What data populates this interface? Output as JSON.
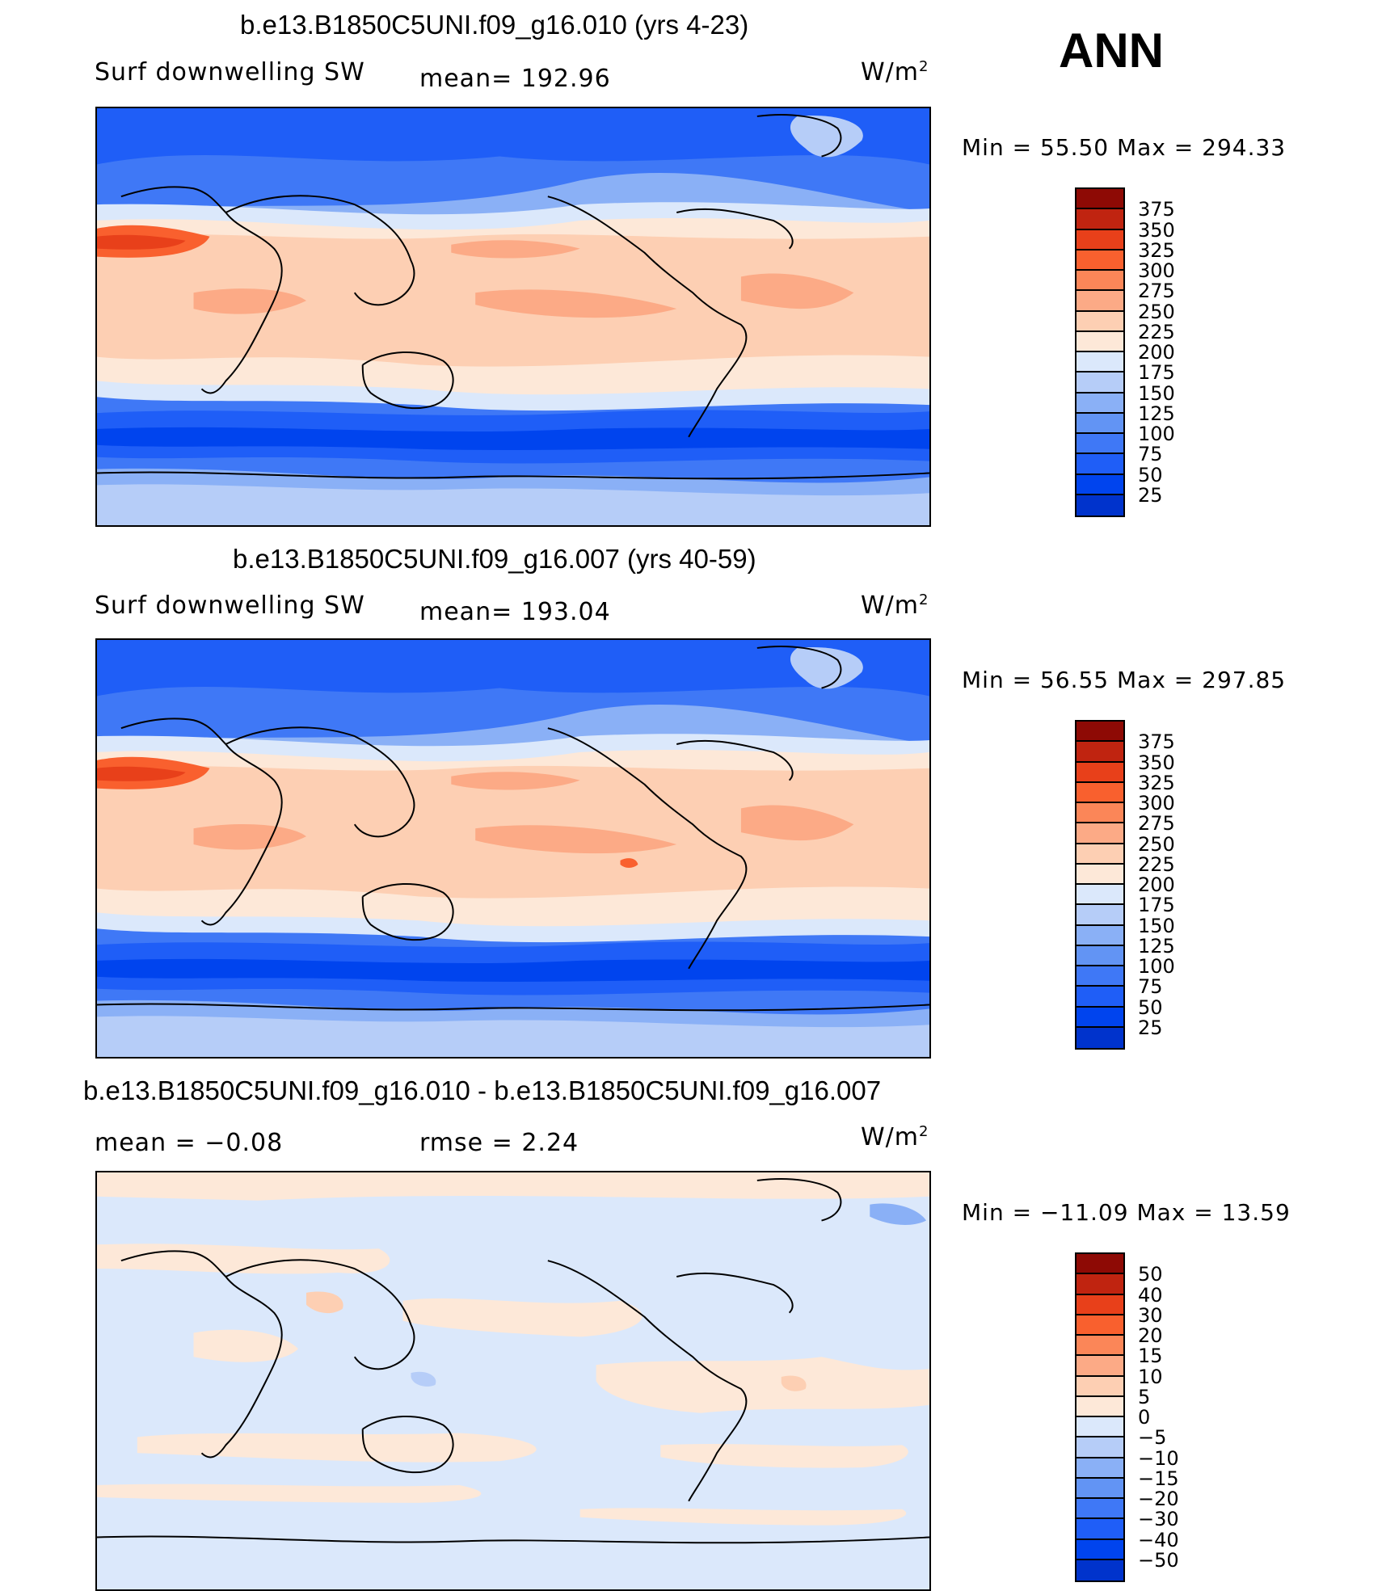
{
  "season": "ANN",
  "units_text": "W/m",
  "units_sup": "2",
  "colors": {
    "abs_scale": [
      "#00007f",
      "#0018a5",
      "#0033cc",
      "#0044ee",
      "#1f5ef7",
      "#3f78f6",
      "#6294f4",
      "#8ab0f6",
      "#b6cdf8",
      "#dbe8fb",
      "#fde8d8",
      "#fdcfb3",
      "#fcaa86",
      "#fb8658",
      "#f9602e",
      "#e8401a",
      "#c02410",
      "#8e0a05"
    ],
    "diff_scale": [
      "#00007f",
      "#0018a5",
      "#0033cc",
      "#0044ee",
      "#1f5ef7",
      "#3f78f6",
      "#6294f4",
      "#8ab0f6",
      "#b6cdf8",
      "#dbe8fb",
      "#fde8d8",
      "#fdcfb3",
      "#fcaa86",
      "#fb8658",
      "#f9602e",
      "#e8401a",
      "#c02410",
      "#8e0a05"
    ]
  },
  "panels": [
    {
      "title": "b.e13.B1850C5UNI.f09_g16.010 (yrs 4-23)",
      "variable": "Surf  downwelling  SW",
      "stat_left": "",
      "stat_mid": "mean=  192.96",
      "min_max": "Min  =    55.50  Max  =  294.33",
      "type": "abs"
    },
    {
      "title": "b.e13.B1850C5UNI.f09_g16.007 (yrs 40-59)",
      "variable": "Surf  downwelling  SW",
      "stat_left": "",
      "stat_mid": "mean=  193.04",
      "min_max": "Min  =    56.55  Max  =  297.85",
      "type": "abs"
    },
    {
      "title": "b.e13.B1850C5UNI.f09_g16.010 - b.e13.B1850C5UNI.f09_g16.007",
      "variable": "mean  =    −0.08",
      "stat_left": "",
      "stat_mid": "rmse  =     2.24",
      "min_max": "Min  = −11.09  Max  =    13.59",
      "type": "diff"
    }
  ],
  "abs_levels": [
    "375",
    "350",
    "325",
    "300",
    "275",
    "250",
    "225",
    "200",
    "175",
    "150",
    "125",
    "100",
    "75",
    "50",
    "25"
  ],
  "diff_levels": [
    "50",
    "40",
    "30",
    "20",
    "15",
    "10",
    "5",
    "0",
    "−5",
    "−10",
    "−15",
    "−20",
    "−30",
    "−40",
    "−50"
  ]
}
